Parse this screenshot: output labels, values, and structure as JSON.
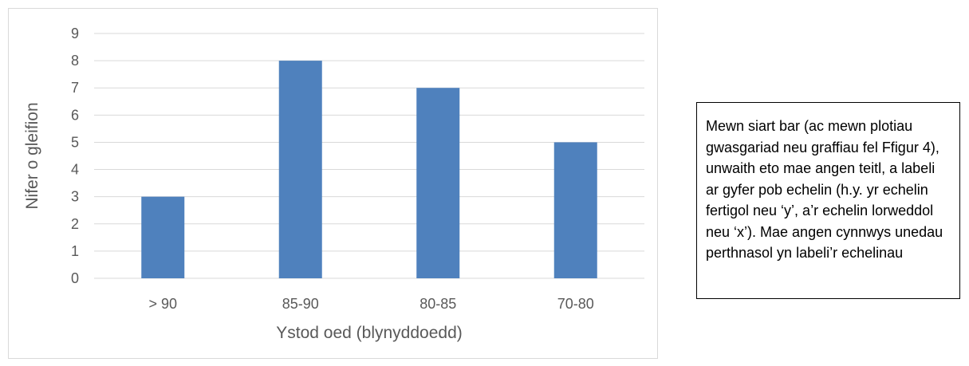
{
  "chart_data": {
    "type": "bar",
    "title": "",
    "categories": [
      "> 90",
      "85-90",
      "80-85",
      "70-80"
    ],
    "values": [
      3,
      8,
      7,
      5
    ],
    "xlabel": "Ystod oed (blynyddoedd)",
    "ylabel": "Nifer o gleifion",
    "ylim": [
      0,
      9
    ],
    "yticks": [
      0,
      1,
      2,
      3,
      4,
      5,
      6,
      7,
      8,
      9
    ],
    "grid": true,
    "legend": "none",
    "bar_color": "#4f81bd",
    "grid_color": "#d9d9d9",
    "text_color": "#595959"
  },
  "note": {
    "text": "Mewn siart bar (ac mewn plotiau gwasgariad neu graffiau fel Ffigur 4), unwaith eto mae angen teitl, a labeli ar gyfer pob echelin (h.y. yr echelin fertigol neu ‘y’, a’r echelin lorweddol neu ‘x’). Mae angen cynnwys unedau perthnasol yn labeli’r echelinau"
  }
}
